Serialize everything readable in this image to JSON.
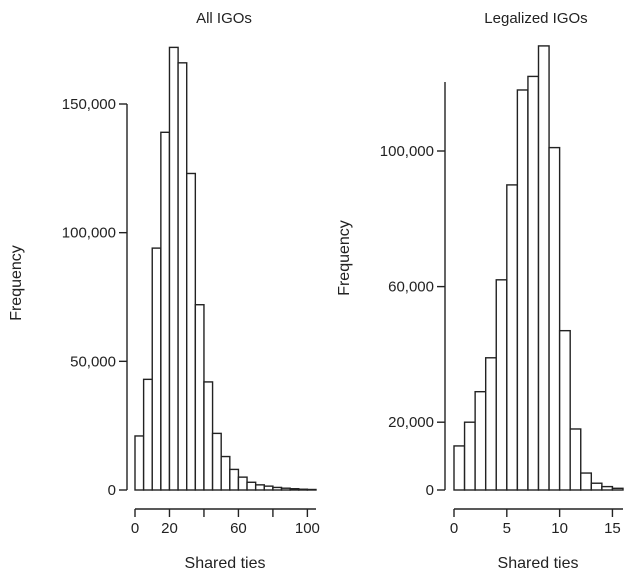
{
  "chart_data": [
    {
      "type": "bar",
      "title": "All IGOs",
      "xlabel": "Shared ties",
      "ylabel": "Frequency",
      "bin_width": 5,
      "bins_start": [
        0,
        5,
        10,
        15,
        20,
        25,
        30,
        35,
        40,
        45,
        50,
        55,
        60,
        65,
        70,
        75,
        80,
        85,
        90,
        95,
        100
      ],
      "values": [
        21000,
        43000,
        94000,
        139000,
        172000,
        166000,
        123000,
        72000,
        42000,
        22000,
        13000,
        8000,
        5000,
        3000,
        2000,
        1500,
        1000,
        700,
        500,
        300,
        200
      ],
      "xlim": [
        0,
        105
      ],
      "ylim": [
        0,
        160000
      ],
      "x_ticks": [
        0,
        20,
        40,
        60,
        80,
        100
      ],
      "x_tick_labels": [
        "0",
        "20",
        "",
        "60",
        "",
        "100"
      ],
      "y_ticks": [
        0,
        50000,
        100000,
        150000
      ],
      "y_tick_labels": [
        "0",
        "50,000",
        "100,000",
        "150,000"
      ]
    },
    {
      "type": "bar",
      "title": "Legalized IGOs",
      "xlabel": "Shared ties",
      "ylabel": "Frequency",
      "bin_width": 1,
      "bins_start": [
        0,
        1,
        2,
        3,
        4,
        5,
        6,
        7,
        8,
        9,
        10,
        11,
        12,
        13,
        14,
        15
      ],
      "values": [
        13000,
        20000,
        29000,
        39000,
        62000,
        90000,
        118000,
        122000,
        131000,
        101000,
        47000,
        18000,
        5000,
        2000,
        1000,
        500
      ],
      "xlim": [
        0,
        16
      ],
      "ylim": [
        0,
        120000
      ],
      "x_ticks": [
        0,
        5,
        10,
        15
      ],
      "x_tick_labels": [
        "0",
        "5",
        "10",
        "15"
      ],
      "y_ticks": [
        0,
        20000,
        60000,
        100000
      ],
      "y_tick_labels": [
        "0",
        "20,000",
        "60,000",
        "100,000"
      ]
    }
  ]
}
